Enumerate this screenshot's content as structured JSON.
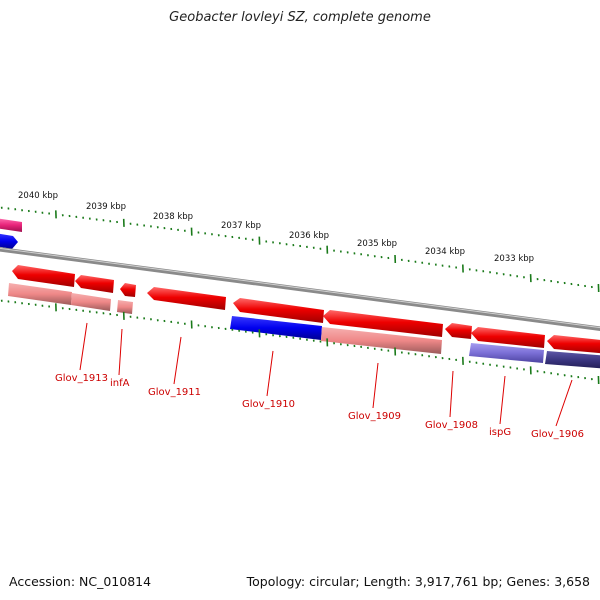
{
  "title": "Geobacter lovleyi SZ, complete genome",
  "accession": "Accession: NC_010814",
  "topology": "Topology: circular; Length: 3,917,761 bp; Genes: 3,658",
  "ruler_labels": [
    "2040 kbp",
    "2039 kbp",
    "2038 kbp",
    "2037 kbp",
    "2036 kbp",
    "2035 kbp",
    "2034 kbp",
    "2033 kbp"
  ],
  "gene_labels": [
    "Glov_1913",
    "infA",
    "Glov_1911",
    "Glov_1910",
    "Glov_1909",
    "Glov_1908",
    "ispG",
    "Glov_1906"
  ],
  "colors": {
    "forward_strand": "#ee0000",
    "cds_light": "#f08a8a",
    "blue_gene": "#0000ee",
    "violet_gene": "#7b6fd6",
    "dark_violet_gene": "#3a3580",
    "magenta_gene": "#e8247a",
    "backbone": "#888888",
    "tick": "#1a7a1a",
    "label": "#cc0000"
  }
}
